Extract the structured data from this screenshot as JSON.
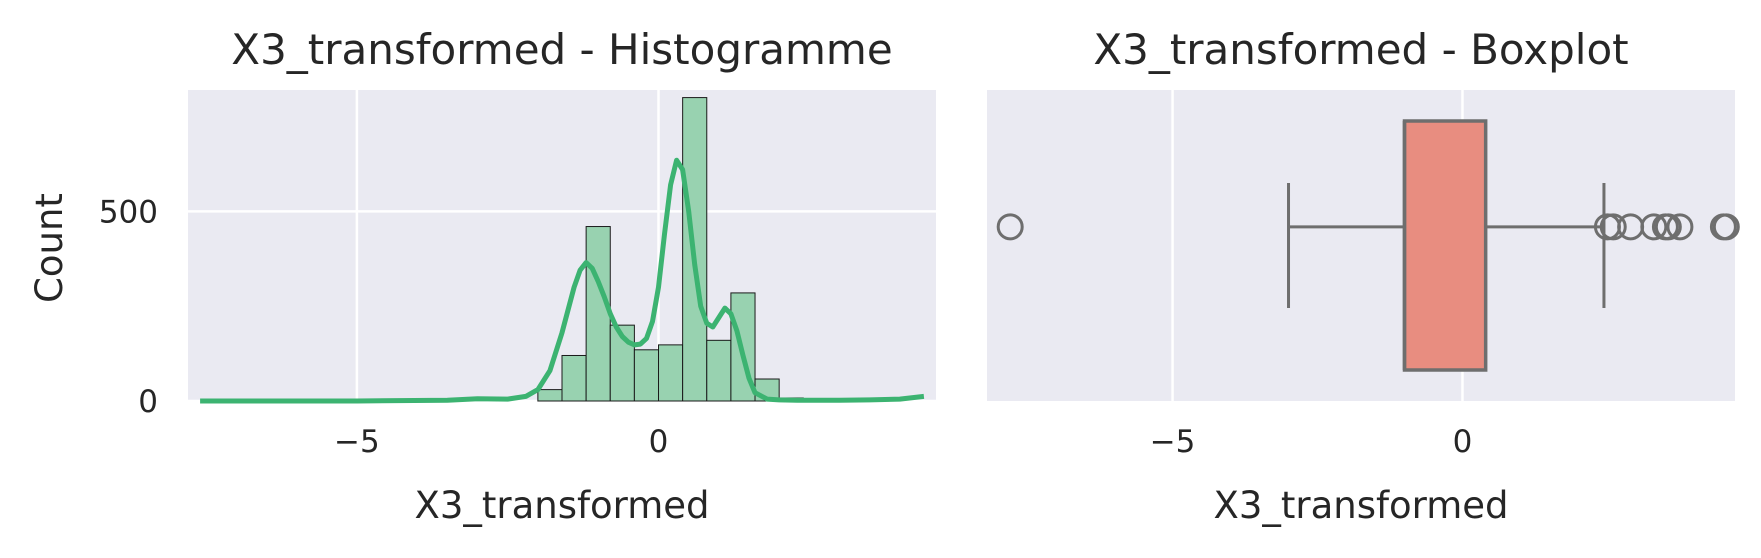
{
  "chart_data": [
    {
      "type": "bar",
      "title": "X3_transformed - Histogramme",
      "xlabel": "X3_transformed",
      "ylabel": "Count",
      "xlim": [
        -7.8,
        4.6
      ],
      "ylim": [
        0,
        820
      ],
      "x_ticks": [
        -5,
        0
      ],
      "x_tick_labels": [
        "−5",
        "0"
      ],
      "y_ticks": [
        0,
        500
      ],
      "y_tick_labels": [
        "0",
        "500"
      ],
      "grid": true,
      "bar_color": "#98d2b0",
      "line_color": "#3cb371",
      "bins": [
        {
          "x0": -2.0,
          "x1": -1.6,
          "count": 30
        },
        {
          "x0": -1.6,
          "x1": -1.2,
          "count": 120
        },
        {
          "x0": -1.2,
          "x1": -0.8,
          "count": 460
        },
        {
          "x0": -0.8,
          "x1": -0.4,
          "count": 200
        },
        {
          "x0": -0.4,
          "x1": 0.0,
          "count": 135
        },
        {
          "x0": 0.0,
          "x1": 0.4,
          "count": 148
        },
        {
          "x0": 0.4,
          "x1": 0.8,
          "count": 800
        },
        {
          "x0": 0.8,
          "x1": 1.2,
          "count": 160
        },
        {
          "x0": 1.2,
          "x1": 1.6,
          "count": 285
        },
        {
          "x0": 1.6,
          "x1": 2.0,
          "count": 58
        },
        {
          "x0": 2.0,
          "x1": 2.4,
          "count": 8
        }
      ],
      "kde": {
        "x": [
          -7.6,
          -5.0,
          -3.5,
          -3.0,
          -2.5,
          -2.2,
          -2.0,
          -1.8,
          -1.6,
          -1.4,
          -1.3,
          -1.2,
          -1.1,
          -1.0,
          -0.9,
          -0.8,
          -0.7,
          -0.6,
          -0.5,
          -0.4,
          -0.3,
          -0.2,
          -0.1,
          0.0,
          0.1,
          0.2,
          0.3,
          0.4,
          0.5,
          0.6,
          0.7,
          0.8,
          0.9,
          1.0,
          1.1,
          1.2,
          1.3,
          1.4,
          1.5,
          1.6,
          1.8,
          2.0,
          2.3,
          2.6,
          3.0,
          3.5,
          4.0,
          4.4
        ],
        "y": [
          0,
          0,
          2,
          6,
          5,
          12,
          30,
          80,
          180,
          300,
          345,
          365,
          350,
          315,
          275,
          230,
          195,
          170,
          155,
          148,
          150,
          165,
          210,
          300,
          440,
          570,
          635,
          610,
          500,
          360,
          250,
          205,
          195,
          220,
          245,
          230,
          185,
          120,
          60,
          22,
          5,
          3,
          2,
          2,
          2,
          3,
          5,
          12
        ]
      }
    },
    {
      "type": "box",
      "title": "X3_transformed - Boxplot",
      "xlabel": "X3_transformed",
      "xlim": [
        -8.2,
        4.7
      ],
      "x_ticks": [
        -5,
        0
      ],
      "x_tick_labels": [
        "−5",
        "0"
      ],
      "grid": true,
      "box_color": "#e88d80",
      "edge_color": "#6e6e6e",
      "stats": {
        "whisker_low": -3.0,
        "q1": -1.0,
        "median": -1.0,
        "q3": 0.4,
        "whisker_high": 2.44
      },
      "outliers": [
        -7.8,
        2.5,
        2.6,
        2.9,
        3.3,
        3.5,
        3.55,
        3.75,
        4.5,
        4.55
      ]
    }
  ]
}
